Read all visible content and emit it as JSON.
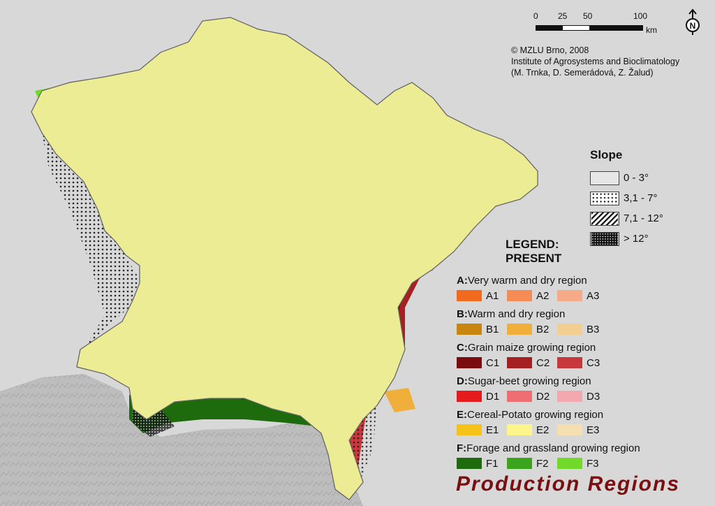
{
  "colors": {
    "background": "#d8d8d8",
    "neighbor_relief": "#bdbdbd",
    "title": "#7a0f12"
  },
  "scale_bar": {
    "ticks": [
      "0",
      "25",
      "50",
      "100"
    ],
    "unit": "km"
  },
  "north_arrow": {
    "icon": "north-arrow-icon",
    "label": "N"
  },
  "credits": {
    "copyright": "© MZLU Brno, 2008",
    "institute": "Institute of Agrosystems and Bioclimatology",
    "authors": "(M. Trnka, D. Semerádová, Z. Žalud)"
  },
  "slope": {
    "title": "Slope",
    "classes": [
      {
        "label": "0 - 3°",
        "pattern": "none"
      },
      {
        "label": "3,1 - 7°",
        "pattern": "dots"
      },
      {
        "label": "7,1 - 12°",
        "pattern": "hatch"
      },
      {
        "label": "> 12°",
        "pattern": "dense"
      }
    ]
  },
  "legend": {
    "heading_line1": "LEGEND:",
    "heading_line2": "PRESENT",
    "groups": [
      {
        "letter": "A:",
        "name": "Very warm and dry region",
        "items": [
          {
            "code": "A1",
            "color": "#f26a1d"
          },
          {
            "code": "A2",
            "color": "#f58c55"
          },
          {
            "code": "A3",
            "color": "#f6aa88"
          }
        ]
      },
      {
        "letter": "B:",
        "name": "Warm and dry region",
        "items": [
          {
            "code": "B1",
            "color": "#c88510"
          },
          {
            "code": "B2",
            "color": "#f0ae3a"
          },
          {
            "code": "B3",
            "color": "#f2cf90"
          }
        ]
      },
      {
        "letter": "C:",
        "name": "Grain maize growing region",
        "items": [
          {
            "code": "C1",
            "color": "#7a0c10"
          },
          {
            "code": "C2",
            "color": "#a42023"
          },
          {
            "code": "C3",
            "color": "#c8373b"
          }
        ]
      },
      {
        "letter": "D:",
        "name": "Sugar-beet growing region",
        "items": [
          {
            "code": "D1",
            "color": "#e41a1c"
          },
          {
            "code": "D2",
            "color": "#ef6e73"
          },
          {
            "code": "D3",
            "color": "#f3a8b0"
          }
        ]
      },
      {
        "letter": "E:",
        "name": "Cereal-Potato growing region",
        "items": [
          {
            "code": "E1",
            "color": "#f5c21a"
          },
          {
            "code": "E2",
            "color": "#fbf58c"
          },
          {
            "code": "E3",
            "color": "#f5dfb0"
          }
        ]
      },
      {
        "letter": "F:",
        "name": "Forage and grassland growing region",
        "items": [
          {
            "code": "F1",
            "color": "#1e6b0e"
          },
          {
            "code": "F2",
            "color": "#3aa51c"
          },
          {
            "code": "F3",
            "color": "#72d92a"
          }
        ]
      }
    ]
  },
  "title": "Production Regions"
}
